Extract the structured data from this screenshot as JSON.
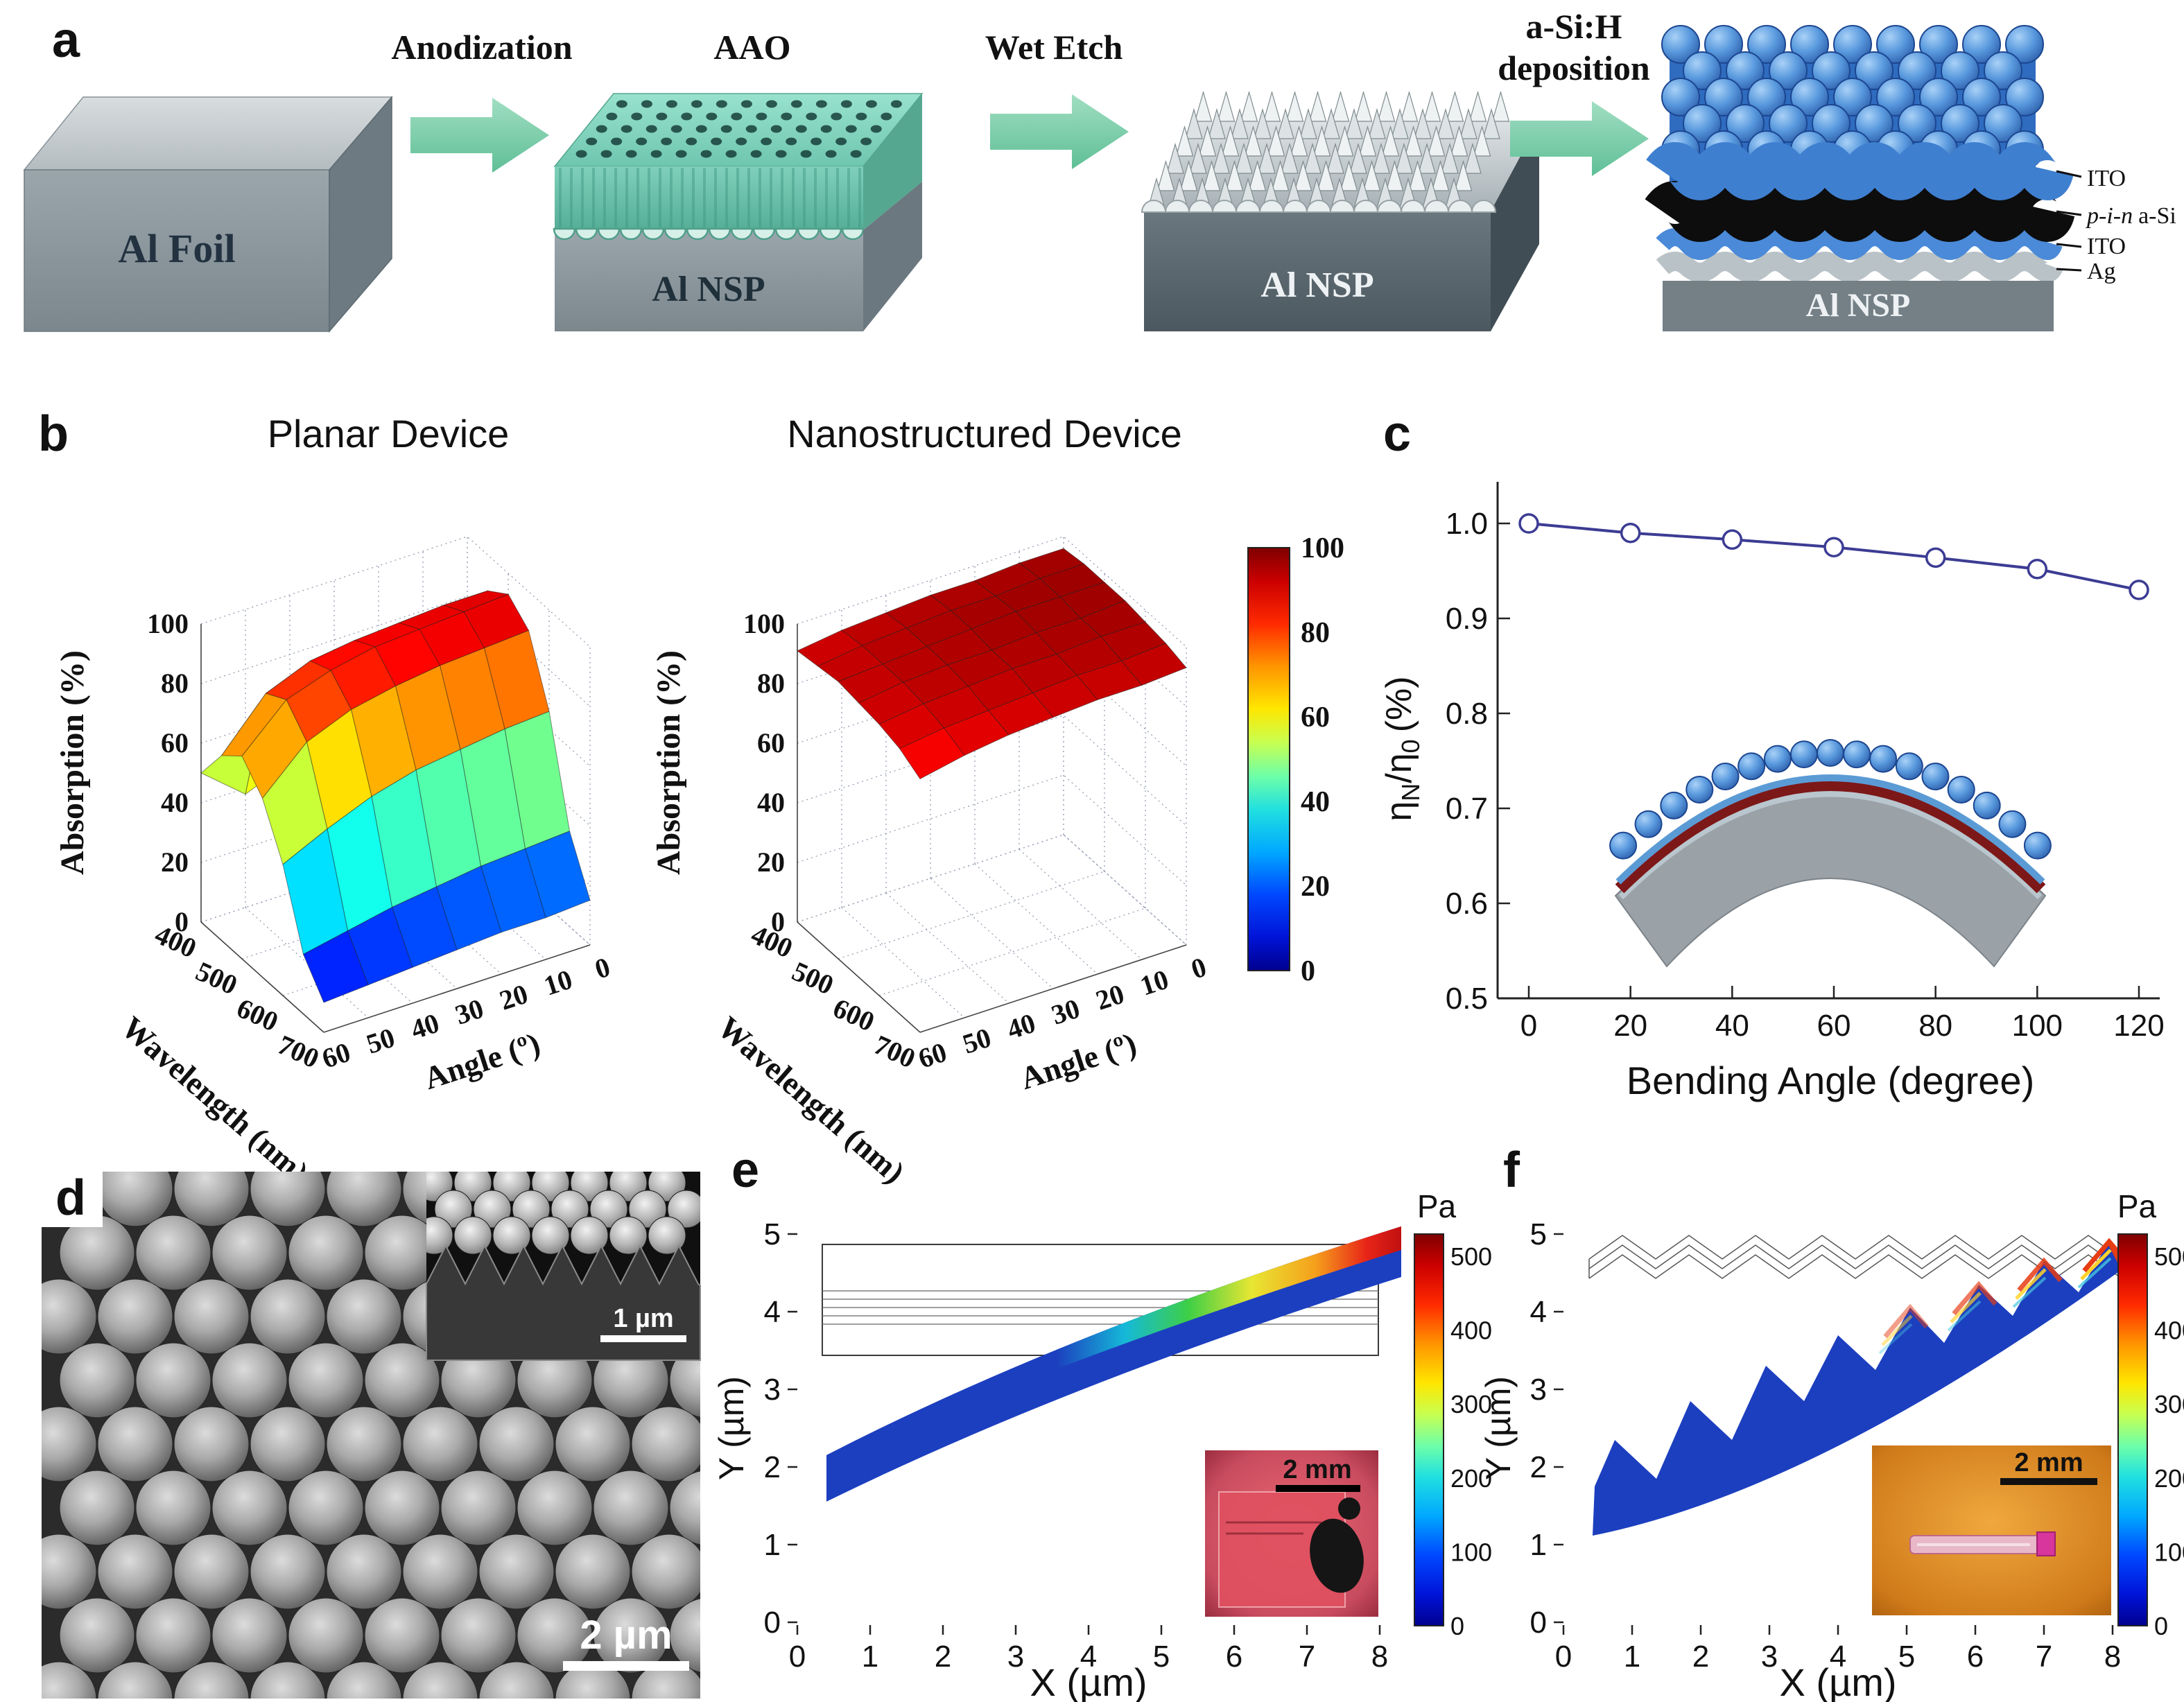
{
  "panels": {
    "a": "a",
    "b": "b",
    "c": "c",
    "d": "d",
    "e": "e",
    "f": "f"
  },
  "panel_a": {
    "arrow1_label": "Anodization",
    "aao_title": "AAO",
    "arrow2_label": "Wet Etch",
    "arrow3_label_line1": "a-Si:H",
    "arrow3_label_line2": "deposition",
    "block1_label": "Al Foil",
    "block2_label": "Al NSP",
    "block3_label": "Al NSP",
    "block4_label": "Al NSP",
    "layer_ito_top": "ITO",
    "layer_pin_italic": "p-i-n",
    "layer_pin_rest": "a-Si",
    "layer_ito_bottom": "ITO",
    "layer_ag": "Ag"
  },
  "panel_d": {
    "scalebar_main": "2 µm",
    "inset_scalebar": "1 µm"
  },
  "chart_data": [
    {
      "id": "planar_absorption_surface",
      "type": "heatmap",
      "title": "Planar Device",
      "zlabel": "Absorption (%)",
      "ylabel": "Wavelength (nm)",
      "xlabel": "Angle (º)",
      "wavelengths": [
        400,
        450,
        500,
        550,
        600,
        650,
        700
      ],
      "angles": [
        0,
        10,
        20,
        30,
        40,
        50,
        60
      ],
      "wavelength_ticks": [
        400,
        500,
        600,
        700
      ],
      "angle_ticks": [
        0,
        10,
        20,
        30,
        40,
        50,
        60
      ],
      "z_ticks": [
        0,
        20,
        40,
        60,
        80,
        100
      ],
      "zlim": [
        0,
        100
      ],
      "absorption": [
        [
          56,
          55,
          53,
          50,
          44,
          38,
          50
        ],
        [
          88,
          88,
          87,
          86,
          84,
          78,
          62
        ],
        [
          93,
          92,
          91,
          90,
          87,
          82,
          68
        ],
        [
          87,
          86,
          85,
          83,
          80,
          74,
          60
        ],
        [
          66,
          65,
          63,
          61,
          57,
          51,
          44
        ],
        [
          32,
          31,
          30,
          28,
          26,
          23,
          20
        ],
        [
          15,
          14,
          14,
          13,
          12,
          11,
          10
        ]
      ]
    },
    {
      "id": "nanostructured_absorption_surface",
      "type": "heatmap",
      "title": "Nanostructured Device",
      "zlabel": "Absorption (%)",
      "ylabel": "Wavelength (nm)",
      "xlabel": "Angle (º)",
      "wavelengths": [
        400,
        450,
        500,
        550,
        600,
        650,
        700
      ],
      "angles": [
        0,
        10,
        20,
        30,
        40,
        50,
        60
      ],
      "wavelength_ticks": [
        400,
        500,
        600,
        700
      ],
      "angle_ticks": [
        0,
        10,
        20,
        30,
        40,
        50,
        60
      ],
      "z_ticks": [
        0,
        20,
        40,
        60,
        80,
        100
      ],
      "zlim": [
        0,
        100
      ],
      "absorption": [
        [
          96,
          96,
          95,
          95,
          94,
          93,
          91
        ],
        [
          97,
          97,
          96,
          96,
          95,
          94,
          92
        ],
        [
          97,
          97,
          97,
          96,
          95,
          94,
          93
        ],
        [
          97,
          96,
          96,
          95,
          95,
          94,
          92
        ],
        [
          96,
          96,
          95,
          95,
          94,
          93,
          91
        ],
        [
          95,
          94,
          94,
          93,
          92,
          91,
          89
        ],
        [
          93,
          92,
          92,
          91,
          90,
          88,
          85
        ]
      ]
    },
    {
      "id": "absorption_colorbar",
      "type": "colorbar",
      "ticks": [
        100,
        80,
        60,
        40,
        20,
        0
      ],
      "range": [
        0,
        100
      ]
    },
    {
      "id": "bending_efficiency",
      "type": "line",
      "xlabel": "Bending Angle (degree)",
      "ylabel": "ηN/η0 (%)",
      "ylabel_parts": [
        "η",
        "N",
        "/η",
        "0",
        "(%)"
      ],
      "x": [
        0,
        20,
        40,
        60,
        80,
        100,
        120
      ],
      "y": [
        1.0,
        0.99,
        0.983,
        0.975,
        0.964,
        0.952,
        0.93
      ],
      "x_ticks": [
        0,
        20,
        40,
        60,
        80,
        100,
        120
      ],
      "y_ticks": [
        0.5,
        0.6,
        0.7,
        0.8,
        0.9,
        1.0
      ],
      "xlim": [
        -6,
        126
      ],
      "ylim": [
        0.5,
        1.05
      ],
      "marker": "open-circle",
      "line_color": "#3c3c94"
    },
    {
      "id": "stress_smooth_film",
      "type": "heatmap",
      "xlabel": "X (µm)",
      "ylabel": "Y (µm)",
      "x_ticks": [
        0,
        1,
        2,
        3,
        4,
        5,
        6,
        7,
        8
      ],
      "y_ticks": [
        0,
        1,
        2,
        3,
        4,
        5
      ],
      "xlim": [
        0,
        8.5
      ],
      "ylim": [
        0,
        5.5
      ],
      "colorbar_label": "Pa",
      "colorbar_ticks": [
        500,
        400,
        300,
        200,
        100,
        0
      ],
      "inset_scalebar": "2 mm",
      "description": "Bent smooth film cross-section: bulk stress near 0-50 Pa (blue), rising to ~500 Pa along the top surface toward the right end."
    },
    {
      "id": "stress_nanostructured_film",
      "type": "heatmap",
      "xlabel": "X (µm)",
      "ylabel": "Y (µm)",
      "x_ticks": [
        0,
        1,
        2,
        3,
        4,
        5,
        6,
        7,
        8
      ],
      "y_ticks": [
        0,
        1,
        2,
        3,
        4,
        5
      ],
      "xlim": [
        0,
        8.5
      ],
      "ylim": [
        0,
        5.5
      ],
      "colorbar_label": "Pa",
      "colorbar_ticks": [
        500,
        400,
        300,
        200,
        100,
        0
      ],
      "inset_scalebar": "2 mm",
      "description": "Bent nanostructured (sawtooth) film cross-section: bulk stress near 0-50 Pa (blue), with localized stress up to ~500 Pa only at tooth tips on the right."
    }
  ]
}
